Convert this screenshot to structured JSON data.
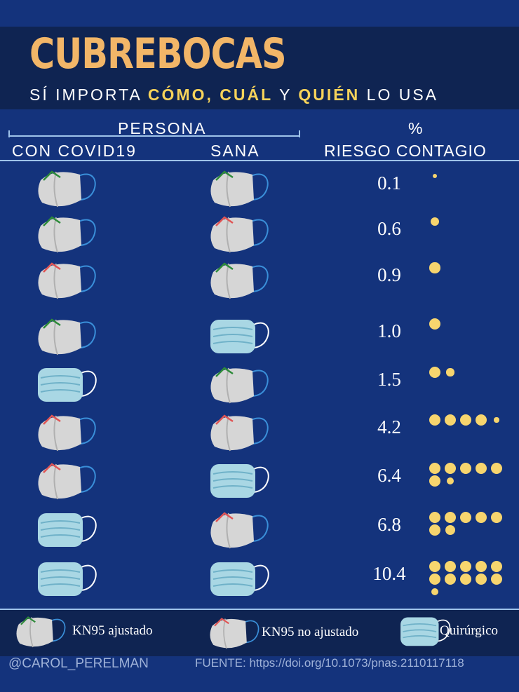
{
  "header": {
    "title": "CUBREBOCAS",
    "subtitle_pre": "SÍ IMPORTA ",
    "subtitle_hl1": "CÓMO, CUÁL",
    "subtitle_mid": " Y ",
    "subtitle_hl2": "QUIÉN",
    "subtitle_post": " LO USA"
  },
  "columns": {
    "persona": "PERSONA",
    "con_covid": "CON COVID19",
    "sana": "SANA",
    "percent": "%",
    "riesgo": "RIESGO CONTAGIO"
  },
  "rows": [
    {
      "covid_mask": "kn95-fitted-icon",
      "healthy_mask": "kn95-fitted-icon",
      "risk": "0.1",
      "risk_value": 0.1
    },
    {
      "covid_mask": "kn95-fitted-icon",
      "healthy_mask": "kn95-unfitted-icon",
      "risk": "0.6",
      "risk_value": 0.6
    },
    {
      "covid_mask": "kn95-unfitted-icon",
      "healthy_mask": "kn95-fitted-icon",
      "risk": "0.9",
      "risk_value": 0.9
    },
    {
      "covid_mask": "kn95-fitted-icon",
      "healthy_mask": "surgical-mask-icon",
      "risk": "1.0",
      "risk_value": 1.0
    },
    {
      "covid_mask": "surgical-mask-icon",
      "healthy_mask": "kn95-fitted-icon",
      "risk": "1.5",
      "risk_value": 1.5
    },
    {
      "covid_mask": "kn95-unfitted-icon",
      "healthy_mask": "kn95-unfitted-icon",
      "risk": "4.2",
      "risk_value": 4.2
    },
    {
      "covid_mask": "kn95-unfitted-icon",
      "healthy_mask": "surgical-mask-icon",
      "risk": "6.4",
      "risk_value": 6.4
    },
    {
      "covid_mask": "surgical-mask-icon",
      "healthy_mask": "kn95-unfitted-icon",
      "risk": "6.8",
      "risk_value": 6.8
    },
    {
      "covid_mask": "surgical-mask-icon",
      "healthy_mask": "surgical-mask-icon",
      "risk": "10.4",
      "risk_value": 10.4
    }
  ],
  "legend": {
    "kn95_fitted": "KN95 ajustado",
    "kn95_unfitted": "KN95 no ajustado",
    "surgical": "Quirúrgico"
  },
  "footer": {
    "author": "@CAROL_PERELMAN",
    "source": "FUENTE: https://doi.org/10.1073/pnas.2110117118"
  },
  "colors": {
    "background": "#14337c",
    "band": "#0f2452",
    "title": "#f2b668",
    "highlight": "#f7d35a",
    "dot": "#f7d56e",
    "fitted_nose": "#2e8b3a",
    "unfitted_nose": "#e05555"
  }
}
